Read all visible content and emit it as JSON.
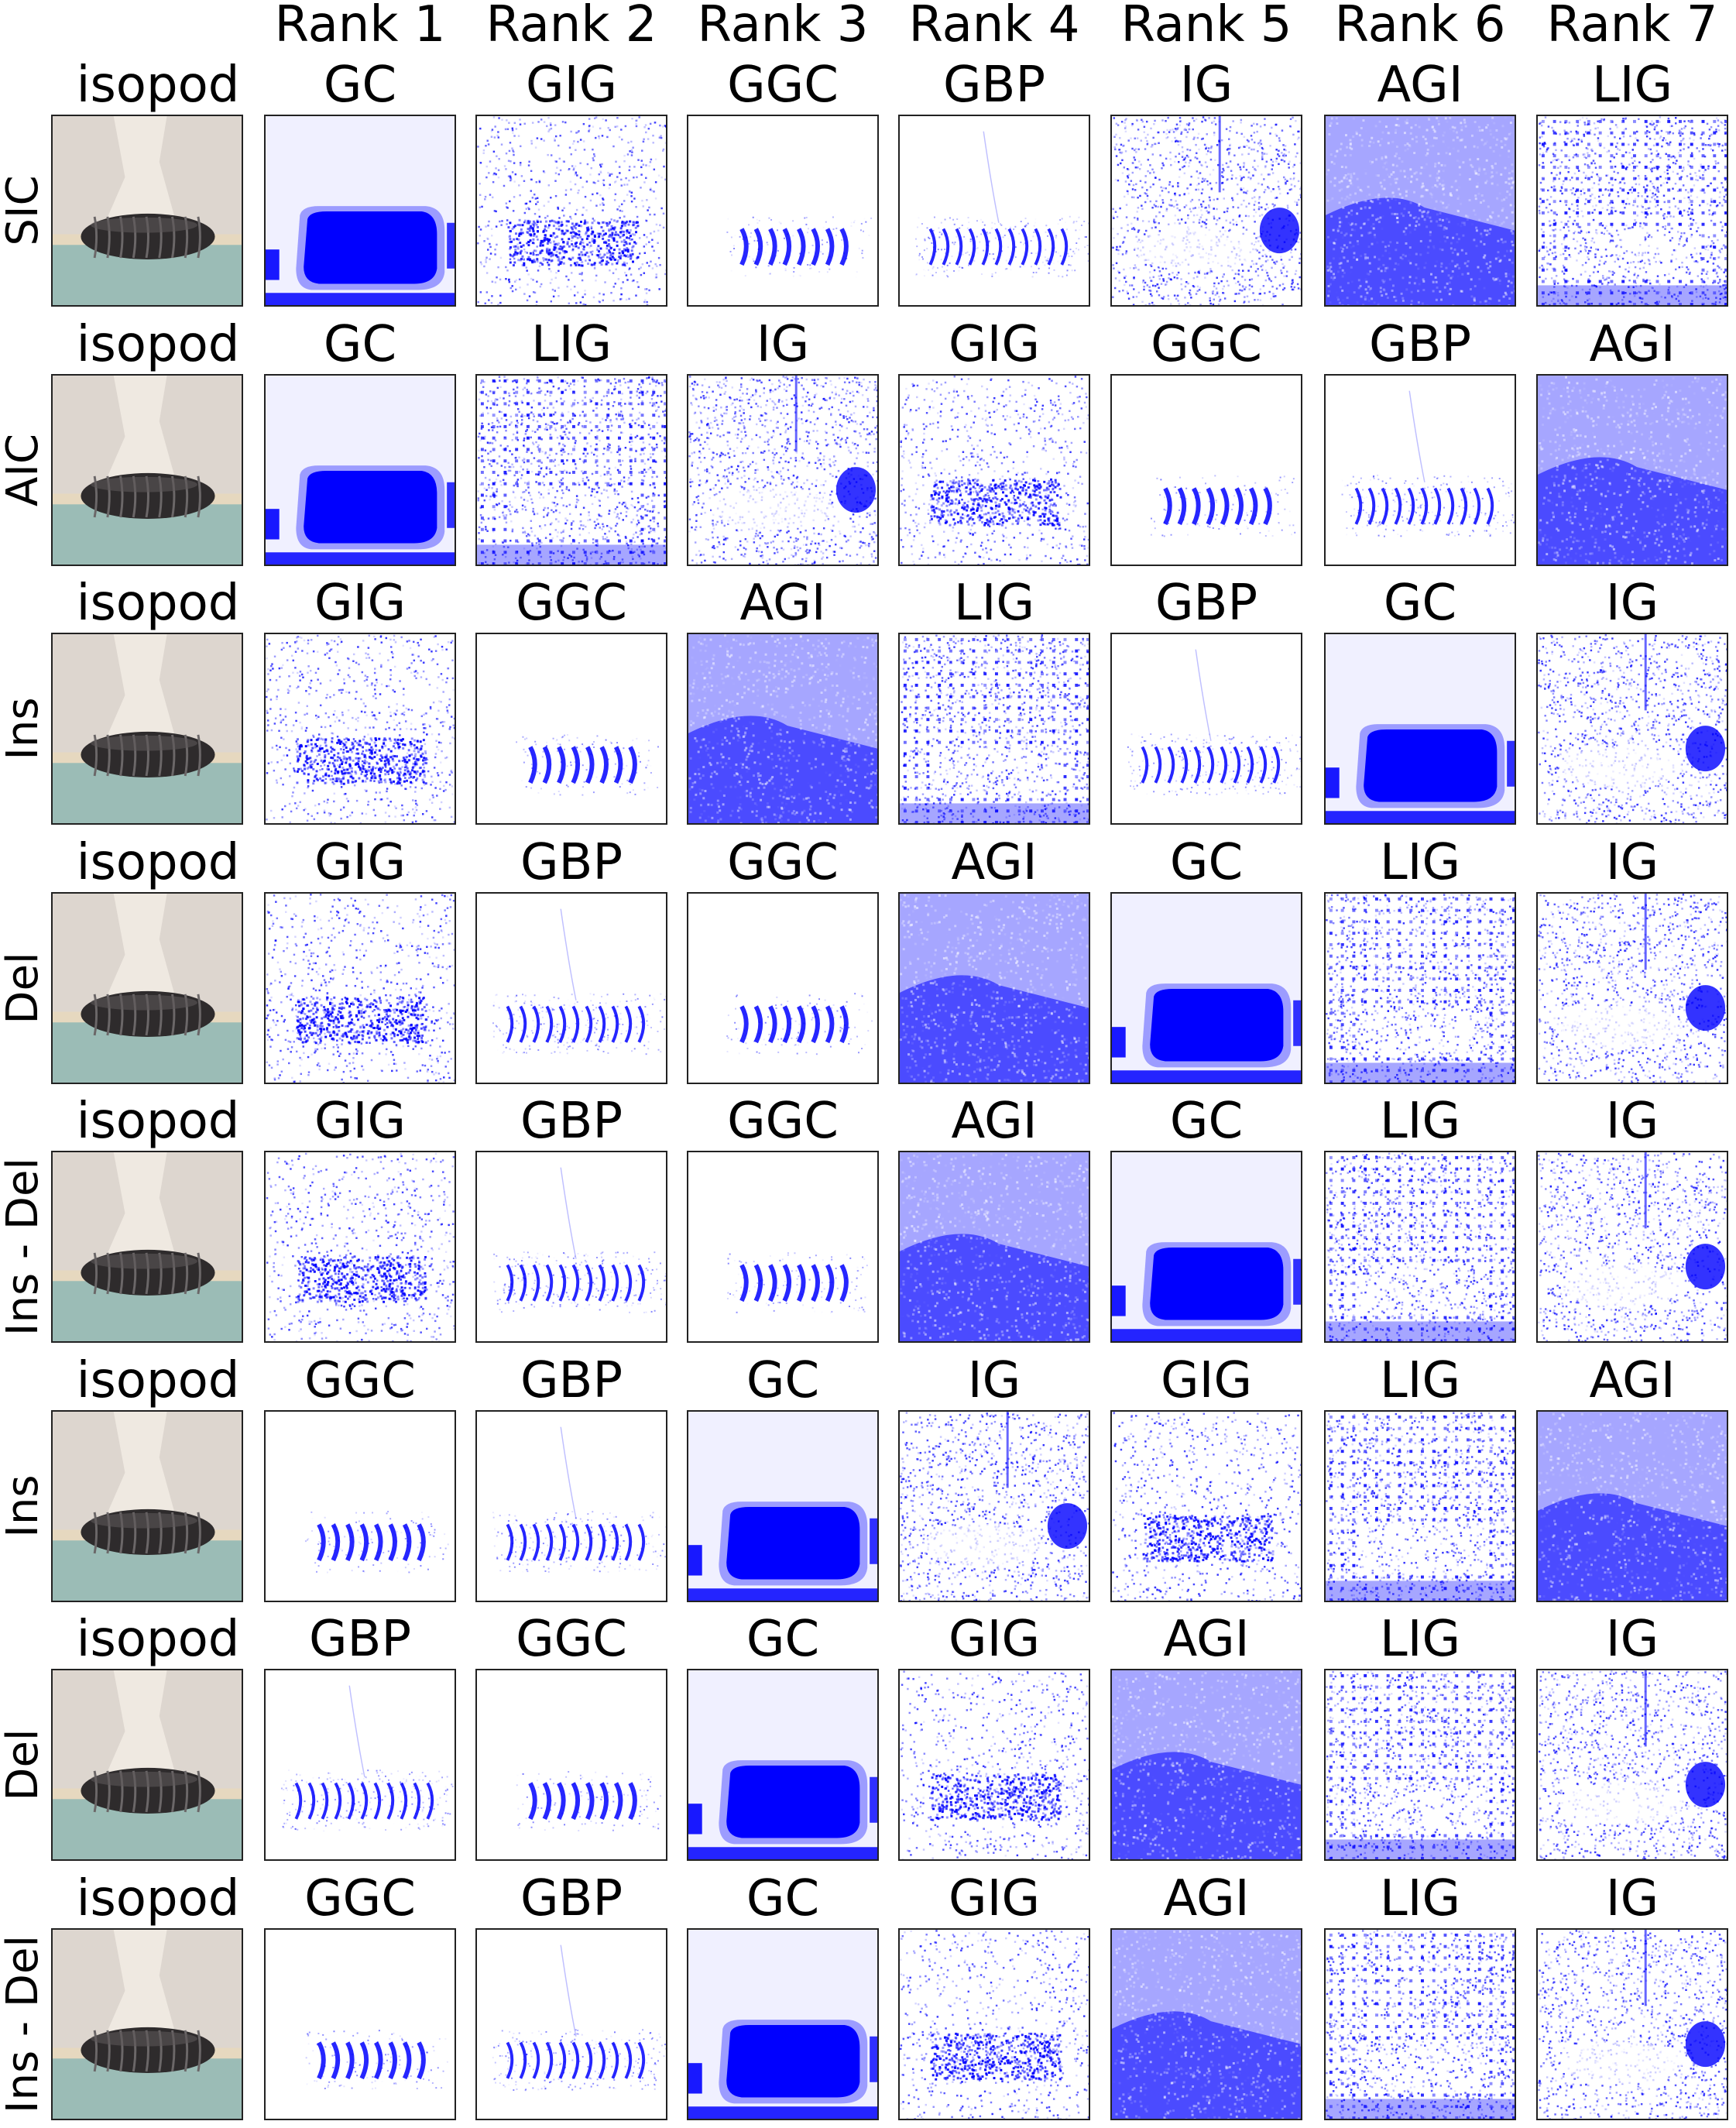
{
  "ranks": [
    "Rank 1",
    "Rank 2",
    "Rank 3",
    "Rank 4",
    "Rank 5",
    "Rank 6",
    "Rank 7"
  ],
  "accent": "#0000ff",
  "rows": [
    {
      "metric": "SIC",
      "class_label": "isopod",
      "methods": [
        "GC",
        "GIG",
        "GGC",
        "GBP",
        "IG",
        "AGI",
        "LIG"
      ]
    },
    {
      "metric": "AIC",
      "class_label": "isopod",
      "methods": [
        "GC",
        "LIG",
        "IG",
        "GIG",
        "GGC",
        "GBP",
        "AGI"
      ]
    },
    {
      "metric": "Ins",
      "class_label": "isopod",
      "methods": [
        "GIG",
        "GGC",
        "AGI",
        "LIG",
        "GBP",
        "GC",
        "IG"
      ]
    },
    {
      "metric": "Del",
      "class_label": "isopod",
      "methods": [
        "GIG",
        "GBP",
        "GGC",
        "AGI",
        "GC",
        "LIG",
        "IG"
      ]
    },
    {
      "metric": "Ins - Del",
      "class_label": "isopod",
      "methods": [
        "GIG",
        "GBP",
        "GGC",
        "AGI",
        "GC",
        "LIG",
        "IG"
      ]
    },
    {
      "metric": "Ins",
      "class_label": "isopod",
      "methods": [
        "GGC",
        "GBP",
        "GC",
        "IG",
        "GIG",
        "LIG",
        "AGI"
      ]
    },
    {
      "metric": "Del",
      "class_label": "isopod",
      "methods": [
        "GBP",
        "GGC",
        "GC",
        "GIG",
        "AGI",
        "LIG",
        "IG"
      ]
    },
    {
      "metric": "Ins - Del",
      "class_label": "isopod",
      "methods": [
        "GGC",
        "GBP",
        "GC",
        "GIG",
        "AGI",
        "LIG",
        "IG"
      ]
    }
  ]
}
